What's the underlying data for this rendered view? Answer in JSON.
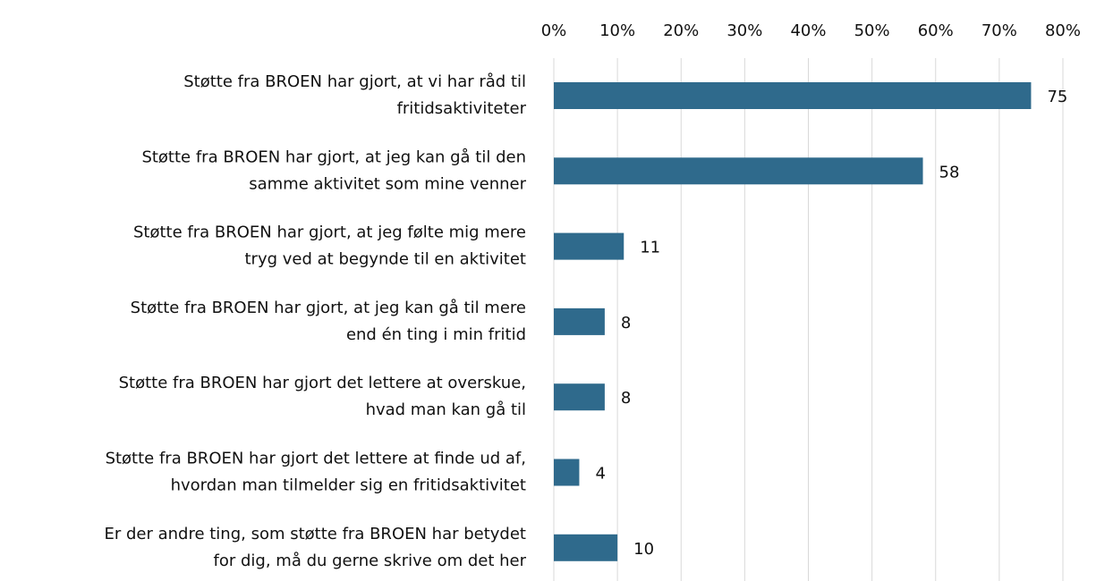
{
  "chart_data": {
    "type": "hbar",
    "categories": [
      [
        "Støtte fra BROEN har gjort, at vi har råd til",
        "fritidsaktiviteter"
      ],
      [
        "Støtte fra BROEN har gjort, at jeg kan gå til den",
        "samme aktivitet som mine venner"
      ],
      [
        "Støtte fra BROEN har gjort, at jeg følte mig mere",
        "tryg ved at begynde til en aktivitet"
      ],
      [
        "Støtte fra BROEN har gjort, at jeg kan gå til mere",
        "end én ting i min fritid"
      ],
      [
        "Støtte fra BROEN har gjort det lettere at overskue,",
        "hvad man kan gå til"
      ],
      [
        "Støtte fra BROEN har gjort det lettere at finde ud af,",
        "hvordan man tilmelder sig en fritidsaktivitet"
      ],
      [
        "Er der andre ting, som støtte fra BROEN har betydet",
        "for dig, må du gerne skrive om det her"
      ]
    ],
    "values": [
      75,
      58,
      11,
      8,
      8,
      4,
      10
    ],
    "color": "#2f6a8c",
    "xlim": [
      0,
      80
    ],
    "xticks": [
      {
        "value": 0,
        "label": "0%"
      },
      {
        "value": 10,
        "label": "10%"
      },
      {
        "value": 20,
        "label": "20%"
      },
      {
        "value": 30,
        "label": "30%"
      },
      {
        "value": 40,
        "label": "40%"
      },
      {
        "value": 50,
        "label": "50%"
      },
      {
        "value": 60,
        "label": "60%"
      },
      {
        "value": 70,
        "label": "70%"
      },
      {
        "value": 80,
        "label": "80%"
      }
    ],
    "grid": true
  }
}
